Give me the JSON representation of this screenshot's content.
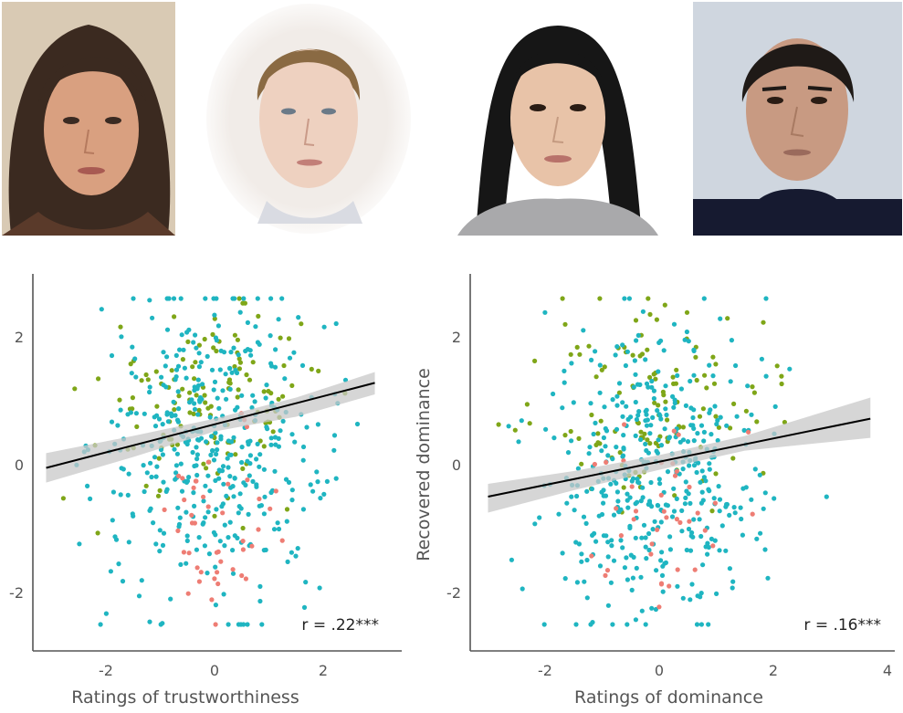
{
  "palette": {
    "teal": "#1fb5c1",
    "olive": "#7fa618",
    "salmon": "#ee7d74",
    "axis": "#555555",
    "fit_line": "#000000",
    "band": "#c8c8c8"
  },
  "photos": [
    {
      "label": "face-1",
      "background": "#d8c9b2",
      "hair": "#3b2a20",
      "skin": "#dca183"
    },
    {
      "label": "face-2",
      "background": "#ffffff",
      "hair": "#8a6a43",
      "skin": "#efd2c2"
    },
    {
      "label": "face-3",
      "background": "#ffffff",
      "hair": "#161616",
      "skin": "#e8c3a8"
    },
    {
      "label": "face-4",
      "background": "#cfd6e0",
      "hair": "#1f1a17",
      "skin": "#c99a82"
    }
  ],
  "chart_data": [
    {
      "type": "scatter",
      "title": "",
      "xlabel": "Ratings of trustworthiness",
      "ylabel": "",
      "xlim": [
        -3.2,
        3.5
      ],
      "ylim": [
        -3.0,
        3.0
      ],
      "xticks": [
        "-2",
        "0",
        "2"
      ],
      "xtick_values": [
        -2,
        0,
        2
      ],
      "yticks": [
        "2",
        "0",
        "-2"
      ],
      "ytick_values": [
        2,
        0,
        -2
      ],
      "annotation": "r = .22***",
      "fit": {
        "x": [
          -3.1,
          2.95
        ],
        "y": [
          -0.05,
          1.28
        ]
      },
      "band": {
        "x": [
          -3.1,
          -1.5,
          0,
          1.5,
          2.95
        ],
        "upper": [
          0.18,
          0.45,
          0.72,
          1.05,
          1.45
        ],
        "lower": [
          -0.28,
          0.12,
          0.52,
          0.75,
          1.1
        ]
      },
      "series_count": 3,
      "points_per_series": [
        420,
        130,
        45
      ],
      "cloud": {
        "x_center": -0.05,
        "x_spread": 1.05,
        "y_center": 0.3,
        "y_spread": 1.15
      }
    },
    {
      "type": "scatter",
      "title": "",
      "xlabel": "Ratings of dominance",
      "ylabel": "Recovered dominance",
      "xlim": [
        -3.2,
        4.0
      ],
      "ylim": [
        -3.0,
        3.0
      ],
      "xticks": [
        "-2",
        "0",
        "2",
        "4"
      ],
      "xtick_values": [
        -2,
        0,
        2,
        4
      ],
      "yticks": [
        "2",
        "0",
        "-2"
      ],
      "ytick_values": [
        2,
        0,
        -2
      ],
      "annotation": "r = .16***",
      "fit": {
        "x": [
          -3.0,
          3.7
        ],
        "y": [
          -0.5,
          0.72
        ]
      },
      "band": {
        "x": [
          -3.0,
          -1.5,
          0,
          1.5,
          3.7
        ],
        "upper": [
          -0.3,
          -0.1,
          0.15,
          0.45,
          1.05
        ],
        "lower": [
          -0.75,
          -0.4,
          -0.08,
          0.22,
          0.42
        ]
      },
      "series_count": 3,
      "points_per_series": [
        430,
        120,
        40
      ],
      "cloud": {
        "x_center": -0.05,
        "x_spread": 0.95,
        "y_center": -0.1,
        "y_spread": 1.2
      }
    }
  ]
}
